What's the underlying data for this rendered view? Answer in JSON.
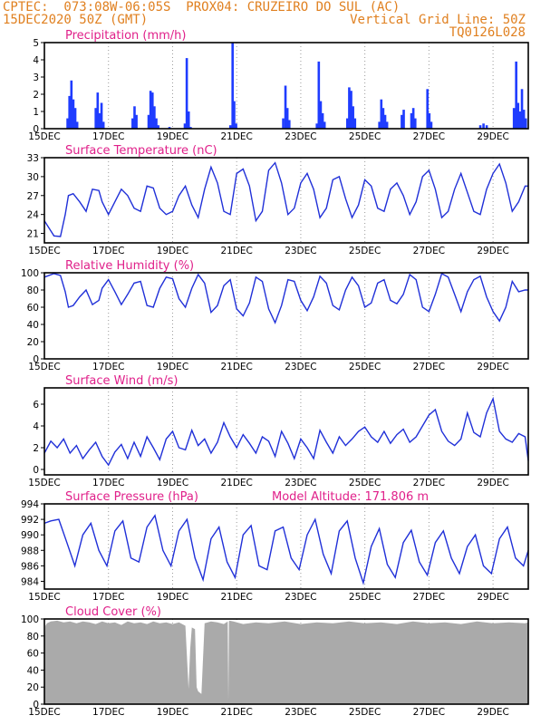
{
  "header": {
    "line1": "CPTEC:  073:08W-06:05S  PROX04: CRUZEIRO DO SUL (AC)",
    "line2_left": "15DEC2020 50Z (GMT)",
    "line2_right": "Vertical Grid Line: 50Z",
    "line3_right": "TQ0126L028"
  },
  "chart_data": [
    {
      "id": "precip",
      "type": "bar",
      "title": "Precipitation (mm/h)",
      "ylim": [
        0,
        5
      ],
      "yticks": [
        0,
        1,
        2,
        3,
        4,
        5
      ],
      "x_tick_labels": [
        "15DEC",
        "17DEC",
        "19DEC",
        "21DEC",
        "23DEC",
        "25DEC",
        "27DEC",
        "29DEC"
      ],
      "x_range_days": [
        15,
        30.1
      ],
      "bars": [
        [
          15.72,
          0.6
        ],
        [
          15.78,
          1.9
        ],
        [
          15.84,
          2.8
        ],
        [
          15.9,
          1.7
        ],
        [
          15.96,
          1.2
        ],
        [
          16.02,
          0.4
        ],
        [
          16.6,
          1.2
        ],
        [
          16.66,
          2.1
        ],
        [
          16.72,
          0.9
        ],
        [
          16.78,
          1.5
        ],
        [
          16.84,
          0.4
        ],
        [
          17.75,
          0.6
        ],
        [
          17.81,
          1.3
        ],
        [
          17.87,
          0.8
        ],
        [
          18.25,
          0.8
        ],
        [
          18.31,
          2.2
        ],
        [
          18.37,
          2.1
        ],
        [
          18.43,
          1.3
        ],
        [
          18.49,
          0.6
        ],
        [
          18.55,
          0.2
        ],
        [
          18.9,
          0.1
        ],
        [
          19.38,
          0.3
        ],
        [
          19.44,
          4.1
        ],
        [
          19.5,
          1.0
        ],
        [
          19.56,
          0.1
        ],
        [
          20.8,
          0.2
        ],
        [
          20.87,
          5.0
        ],
        [
          20.92,
          1.6
        ],
        [
          20.98,
          0.3
        ],
        [
          22.45,
          0.6
        ],
        [
          22.52,
          2.5
        ],
        [
          22.58,
          1.2
        ],
        [
          22.64,
          0.5
        ],
        [
          23.5,
          0.3
        ],
        [
          23.56,
          3.9
        ],
        [
          23.62,
          1.6
        ],
        [
          23.68,
          0.9
        ],
        [
          23.74,
          0.4
        ],
        [
          24.45,
          0.6
        ],
        [
          24.51,
          2.4
        ],
        [
          24.57,
          2.2
        ],
        [
          24.63,
          1.3
        ],
        [
          24.69,
          0.6
        ],
        [
          25.45,
          0.4
        ],
        [
          25.51,
          1.7
        ],
        [
          25.57,
          1.2
        ],
        [
          25.63,
          0.8
        ],
        [
          25.69,
          0.4
        ],
        [
          26.15,
          0.8
        ],
        [
          26.21,
          1.1
        ],
        [
          26.45,
          0.9
        ],
        [
          26.51,
          1.2
        ],
        [
          26.57,
          0.6
        ],
        [
          26.95,
          2.3
        ],
        [
          27.01,
          0.9
        ],
        [
          27.07,
          0.4
        ],
        [
          28.6,
          0.2
        ],
        [
          28.7,
          0.3
        ],
        [
          28.8,
          0.2
        ],
        [
          29.65,
          1.2
        ],
        [
          29.72,
          3.9
        ],
        [
          29.78,
          1.5
        ],
        [
          29.84,
          1.0
        ],
        [
          29.9,
          2.3
        ],
        [
          29.96,
          1.1
        ],
        [
          30.02,
          0.6
        ]
      ]
    },
    {
      "id": "temp",
      "type": "line",
      "title": "Surface Temperature (nC)",
      "ylim": [
        19.5,
        33
      ],
      "yticks": [
        21,
        24,
        27,
        30,
        33
      ],
      "x_tick_labels": [
        "15DEC",
        "17DEC",
        "19DEC",
        "21DEC",
        "23DEC",
        "25DEC",
        "27DEC",
        "29DEC"
      ],
      "x_range_days": [
        15,
        30.1
      ],
      "x": [
        15,
        15.3,
        15.5,
        15.65,
        15.75,
        15.9,
        16.1,
        16.3,
        16.5,
        16.7,
        16.8,
        17,
        17.2,
        17.4,
        17.6,
        17.8,
        18,
        18.2,
        18.4,
        18.6,
        18.8,
        19,
        19.2,
        19.4,
        19.6,
        19.8,
        20,
        20.2,
        20.4,
        20.6,
        20.8,
        21,
        21.2,
        21.4,
        21.6,
        21.8,
        22,
        22.2,
        22.4,
        22.6,
        22.8,
        23,
        23.2,
        23.4,
        23.6,
        23.8,
        24,
        24.2,
        24.4,
        24.6,
        24.8,
        25,
        25.2,
        25.4,
        25.6,
        25.8,
        26,
        26.2,
        26.4,
        26.6,
        26.8,
        27,
        27.2,
        27.4,
        27.6,
        27.8,
        28,
        28.2,
        28.4,
        28.6,
        28.8,
        29,
        29.2,
        29.4,
        29.6,
        29.8,
        30,
        30.1
      ],
      "y": [
        23,
        20.6,
        20.5,
        24,
        27,
        27.3,
        26,
        24.5,
        28,
        27.8,
        26,
        24,
        26,
        28,
        27,
        25,
        24.5,
        28.5,
        28.2,
        25,
        24,
        24.5,
        27,
        28.5,
        25.5,
        23.5,
        28,
        31.5,
        29,
        24.5,
        24,
        30.5,
        31.2,
        28.5,
        23,
        24.5,
        31,
        32.2,
        29,
        24,
        25,
        29,
        30.5,
        28,
        23.5,
        25,
        29.5,
        30,
        26.5,
        23.5,
        25.5,
        29.5,
        28.5,
        25,
        24.5,
        28,
        29,
        27,
        24,
        26,
        30,
        31,
        28,
        23.5,
        24.5,
        28,
        30.5,
        27.5,
        24.5,
        24,
        28,
        30.5,
        32,
        29,
        24.5,
        26,
        28.5,
        28.5
      ]
    },
    {
      "id": "rh",
      "type": "line",
      "title": "Relative Humidity (%)",
      "ylim": [
        0,
        100
      ],
      "yticks": [
        0,
        20,
        40,
        60,
        80,
        100
      ],
      "x_tick_labels": [
        "15DEC",
        "17DEC",
        "19DEC",
        "21DEC",
        "23DEC",
        "25DEC",
        "27DEC",
        "29DEC"
      ],
      "x_range_days": [
        15,
        30.1
      ],
      "x": [
        15,
        15.3,
        15.5,
        15.65,
        15.75,
        15.9,
        16.1,
        16.3,
        16.5,
        16.7,
        16.8,
        17,
        17.2,
        17.4,
        17.6,
        17.8,
        18,
        18.2,
        18.4,
        18.6,
        18.8,
        19,
        19.2,
        19.4,
        19.6,
        19.8,
        20,
        20.2,
        20.4,
        20.6,
        20.8,
        21,
        21.2,
        21.4,
        21.6,
        21.8,
        22,
        22.2,
        22.4,
        22.6,
        22.8,
        23,
        23.2,
        23.4,
        23.6,
        23.8,
        24,
        24.2,
        24.4,
        24.6,
        24.8,
        25,
        25.2,
        25.4,
        25.6,
        25.8,
        26,
        26.2,
        26.4,
        26.6,
        26.8,
        27,
        27.2,
        27.4,
        27.6,
        27.8,
        28,
        28.2,
        28.4,
        28.6,
        28.8,
        29,
        29.2,
        29.4,
        29.6,
        29.8,
        30,
        30.1
      ],
      "y": [
        95,
        99,
        97,
        78,
        60,
        62,
        72,
        80,
        63,
        68,
        82,
        92,
        78,
        63,
        75,
        88,
        90,
        62,
        60,
        82,
        95,
        93,
        70,
        60,
        82,
        98,
        88,
        54,
        62,
        85,
        92,
        58,
        50,
        65,
        95,
        90,
        58,
        42,
        62,
        92,
        90,
        68,
        56,
        72,
        96,
        88,
        62,
        57,
        80,
        95,
        85,
        60,
        65,
        88,
        92,
        68,
        64,
        75,
        98,
        92,
        60,
        55,
        75,
        99,
        95,
        75,
        55,
        78,
        92,
        96,
        72,
        55,
        44,
        60,
        90,
        78,
        80,
        80
      ]
    },
    {
      "id": "wind",
      "type": "line",
      "title": "Surface Wind (m/s)",
      "ylim": [
        -0.5,
        7.5
      ],
      "yticks": [
        0,
        2,
        4,
        6
      ],
      "x_tick_labels": [
        "15DEC",
        "17DEC",
        "19DEC",
        "21DEC",
        "23DEC",
        "25DEC",
        "27DEC",
        "29DEC"
      ],
      "x_range_days": [
        15,
        30.1
      ],
      "x": [
        15,
        15.2,
        15.4,
        15.6,
        15.8,
        16,
        16.2,
        16.4,
        16.6,
        16.8,
        17,
        17.2,
        17.4,
        17.6,
        17.8,
        18,
        18.2,
        18.4,
        18.6,
        18.8,
        19,
        19.2,
        19.4,
        19.6,
        19.8,
        20,
        20.2,
        20.4,
        20.6,
        20.8,
        21,
        21.2,
        21.4,
        21.6,
        21.8,
        22,
        22.2,
        22.4,
        22.6,
        22.8,
        23,
        23.2,
        23.4,
        23.6,
        23.8,
        24,
        24.2,
        24.4,
        24.6,
        24.8,
        25,
        25.2,
        25.4,
        25.6,
        25.8,
        26,
        26.2,
        26.4,
        26.6,
        26.8,
        27,
        27.2,
        27.4,
        27.6,
        27.8,
        28,
        28.2,
        28.4,
        28.6,
        28.8,
        29,
        29.2,
        29.4,
        29.6,
        29.8,
        30,
        30.1
      ],
      "y": [
        1.5,
        2.6,
        2.0,
        2.8,
        1.5,
        2.2,
        1.0,
        1.8,
        2.5,
        1.2,
        0.4,
        1.6,
        2.3,
        1.0,
        2.5,
        1.2,
        3.0,
        2.0,
        0.9,
        2.8,
        3.5,
        2.0,
        1.8,
        3.6,
        2.2,
        2.8,
        1.5,
        2.5,
        4.3,
        3.0,
        2.0,
        3.2,
        2.4,
        1.5,
        3.0,
        2.6,
        1.2,
        3.5,
        2.4,
        1.0,
        2.8,
        2.0,
        1.0,
        3.6,
        2.5,
        1.5,
        3.0,
        2.2,
        2.8,
        3.5,
        3.9,
        3.0,
        2.5,
        3.5,
        2.4,
        3.2,
        3.7,
        2.5,
        3.0,
        4.0,
        5.0,
        5.5,
        3.5,
        2.6,
        2.2,
        2.8,
        5.2,
        3.4,
        3.0,
        5.2,
        6.5,
        3.5,
        2.8,
        2.5,
        3.3,
        3.0,
        0.8
      ]
    },
    {
      "id": "pressure",
      "type": "line",
      "title": "Surface Pressure (hPa)",
      "subtitle": "Model Altitude: 171.806 m",
      "ylim": [
        983,
        994
      ],
      "yticks": [
        984,
        986,
        988,
        990,
        992,
        994
      ],
      "x_tick_labels": [
        "15DEC",
        "17DEC",
        "19DEC",
        "21DEC",
        "23DEC",
        "25DEC",
        "27DEC",
        "29DEC"
      ],
      "x_range_days": [
        15,
        30.1
      ],
      "x": [
        15,
        15.2,
        15.45,
        15.7,
        15.95,
        16.2,
        16.45,
        16.7,
        16.95,
        17.2,
        17.45,
        17.7,
        17.95,
        18.2,
        18.45,
        18.7,
        18.95,
        19.2,
        19.45,
        19.7,
        19.95,
        20.2,
        20.45,
        20.7,
        20.95,
        21.2,
        21.45,
        21.7,
        21.95,
        22.2,
        22.45,
        22.7,
        22.95,
        23.2,
        23.45,
        23.7,
        23.95,
        24.2,
        24.45,
        24.7,
        24.95,
        25.2,
        25.45,
        25.7,
        25.95,
        26.2,
        26.45,
        26.7,
        26.95,
        27.2,
        27.45,
        27.7,
        27.95,
        28.2,
        28.45,
        28.7,
        28.95,
        29.2,
        29.45,
        29.7,
        29.95,
        30.1
      ],
      "y": [
        991.5,
        991.8,
        992.0,
        989.0,
        986.0,
        990.0,
        991.5,
        988.0,
        986.0,
        990.5,
        991.8,
        987.0,
        986.5,
        991.0,
        992.5,
        988.0,
        986.0,
        990.5,
        992.0,
        987.0,
        984.2,
        989.5,
        991.0,
        986.5,
        984.5,
        990.0,
        991.2,
        986.0,
        985.5,
        990.5,
        991.0,
        987.0,
        985.5,
        990.0,
        992.0,
        987.5,
        985.0,
        990.5,
        991.8,
        987.0,
        983.8,
        988.5,
        990.8,
        986.2,
        984.5,
        989.0,
        990.6,
        986.5,
        984.8,
        989.0,
        990.5,
        987.0,
        985.0,
        988.5,
        990.0,
        986.0,
        985.0,
        989.5,
        991.0,
        987.0,
        986.0,
        988.0
      ]
    },
    {
      "id": "cloud",
      "type": "area",
      "title": "Cloud Cover (%)",
      "ylim": [
        0,
        100
      ],
      "yticks": [
        0,
        20,
        40,
        60,
        80,
        100
      ],
      "x_tick_labels": [
        "15DEC",
        "17DEC",
        "19DEC",
        "21DEC",
        "23DEC",
        "25DEC",
        "27DEC",
        "29DEC"
      ],
      "x_range_days": [
        15,
        30.1
      ],
      "x": [
        15,
        15.03,
        15.08,
        15.2,
        15.4,
        15.6,
        15.8,
        16,
        16.2,
        16.4,
        16.6,
        16.8,
        17,
        17.2,
        17.4,
        17.6,
        17.8,
        18,
        18.2,
        18.4,
        18.6,
        18.8,
        19,
        19.2,
        19.4,
        19.5,
        19.55,
        19.6,
        19.7,
        19.75,
        19.8,
        19.9,
        20,
        20.2,
        20.4,
        20.6,
        20.72,
        20.74,
        20.76,
        20.78,
        20.9,
        21.2,
        21.6,
        22,
        22.5,
        23,
        23.5,
        24,
        24.5,
        25,
        25.5,
        26,
        26.5,
        27,
        27.5,
        28,
        28.5,
        29,
        29.5,
        30,
        30.1
      ],
      "y": [
        70,
        92,
        95,
        97,
        98,
        96,
        97,
        95,
        97,
        96,
        94,
        97,
        95,
        96,
        93,
        97,
        95,
        96,
        94,
        97,
        95,
        96,
        94,
        96,
        92,
        18,
        65,
        90,
        88,
        20,
        15,
        12,
        95,
        97,
        96,
        94,
        97,
        4,
        97,
        98,
        97,
        94,
        96,
        95,
        97,
        94,
        96,
        95,
        97,
        95,
        96,
        94,
        97,
        95,
        96,
        94,
        97,
        95,
        96,
        95,
        96
      ]
    }
  ]
}
